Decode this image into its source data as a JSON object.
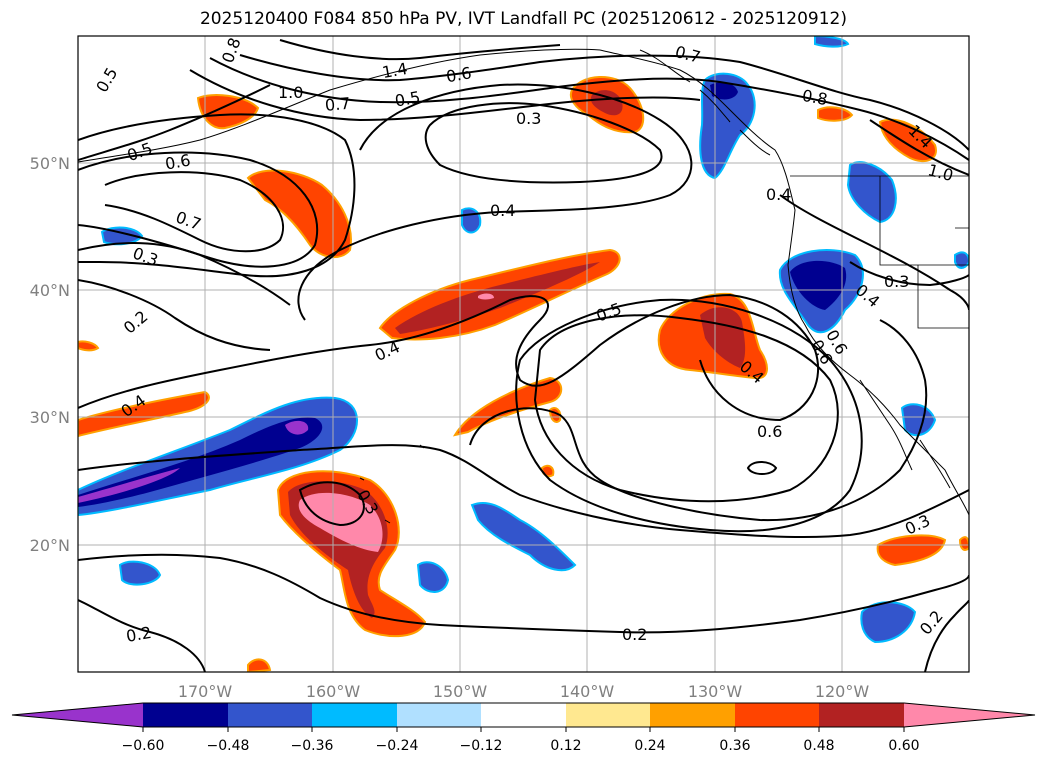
{
  "title": "2025120400 F084 850 hPa PV, IVT Landfall PC (2025120612 - 2025120912)",
  "colors": {
    "neg_extreme": "#9933cc",
    "neg_060": "#000090",
    "neg_048": "#3355cc",
    "neg_036": "#00bbff",
    "neg_024": "#b0e0ff",
    "neutral": "#ffffff",
    "pos_012": "#ffe890",
    "pos_024": "#ffa000",
    "pos_036": "#ff4400",
    "pos_048": "#b22222",
    "pos_060": "#ff88aa",
    "gridline": "#b0b0b0",
    "contour": "#000000"
  },
  "map": {
    "lon_range": [
      -180,
      -110
    ],
    "lat_range": [
      10,
      60
    ],
    "lon_ticks": [
      "170°W",
      "160°W",
      "150°W",
      "140°W",
      "130°W",
      "120°W"
    ],
    "lat_ticks": [
      "20°N",
      "30°N",
      "40°N",
      "50°N"
    ]
  },
  "colorbar": {
    "tick_labels": [
      "−0.60",
      "−0.48",
      "−0.36",
      "−0.24",
      "−0.12",
      "0.12",
      "0.24",
      "0.36",
      "0.48",
      "0.60"
    ]
  },
  "contour_labels": [
    "0.5",
    "0.8",
    "1.0",
    "1.4",
    "0.6",
    "0.7",
    "0.5",
    "0.7",
    "0.3",
    "0.8",
    "1.4",
    "1.0",
    "0.5",
    "0.6",
    "0.7",
    "0.3",
    "0.4",
    "0.4",
    "0.3",
    "0.2",
    "0.4",
    "0.4",
    "0.5",
    "0.4",
    "0.6",
    "0.3",
    "0.2",
    "0.2",
    "0.3",
    "0.2",
    "0.6",
    "0.4",
    "0.6"
  ]
}
